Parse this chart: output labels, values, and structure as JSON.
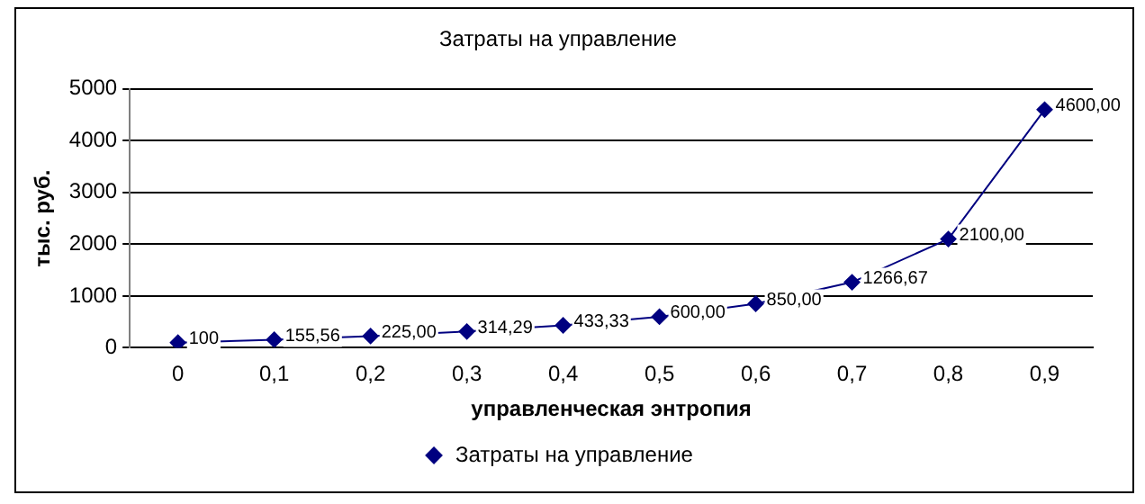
{
  "chart_data": {
    "type": "line",
    "title": "Затраты на управление",
    "xlabel": "управленческая энтропия",
    "ylabel": "тыс. руб.",
    "categories": [
      "0",
      "0,1",
      "0,2",
      "0,3",
      "0,4",
      "0,5",
      "0,6",
      "0,7",
      "0,8",
      "0,9"
    ],
    "series": [
      {
        "name": "Затраты на управление",
        "color": "#000080",
        "values": [
          100,
          155.56,
          225,
          314.29,
          433.33,
          600,
          850,
          1266.67,
          2100,
          4600
        ],
        "value_labels": [
          "100",
          "155,56",
          "225,00",
          "314,29",
          "433,33",
          "600,00",
          "850,00",
          "1266,67",
          "2100,00",
          "4600,00"
        ]
      }
    ],
    "ylim": [
      0,
      5000
    ],
    "yticks": [
      0,
      1000,
      2000,
      3000,
      4000,
      5000
    ],
    "grid": "y",
    "legend": "bottom",
    "marker": "diamond",
    "line_style": "solid"
  }
}
